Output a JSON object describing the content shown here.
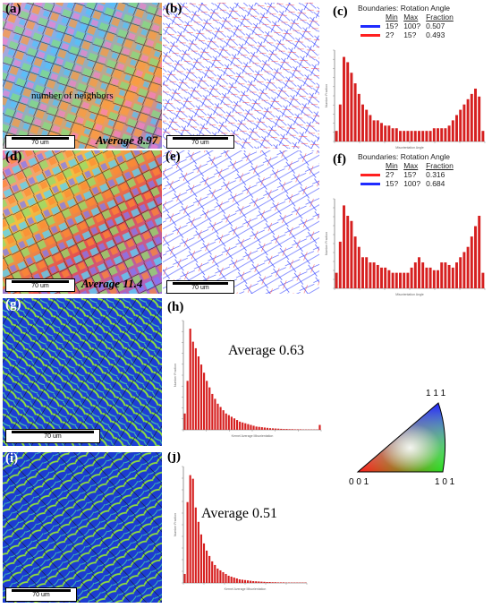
{
  "panels": {
    "a": {
      "label": "(a)",
      "scale": "70 um",
      "average": "Average 8.97",
      "annotation": "number of neighbors"
    },
    "b": {
      "label": "(b)",
      "scale": "70 um"
    },
    "c": {
      "label": "(c)"
    },
    "d": {
      "label": "(d)",
      "scale": "70 um",
      "average": "Average 11.4"
    },
    "e": {
      "label": "(e)",
      "scale": "70 um"
    },
    "f": {
      "label": "(f)"
    },
    "g": {
      "label": "(g)",
      "scale": "70 um"
    },
    "h": {
      "label": "(h)",
      "average": "Average 0.63"
    },
    "i": {
      "label": "(i)",
      "scale": "70 um"
    },
    "j": {
      "label": "(j)",
      "average": "Average 0.51"
    }
  },
  "legend_c": {
    "title": "Boundaries: Rotation Angle",
    "headers": [
      "Min",
      "Max",
      "Fraction"
    ],
    "rows": [
      {
        "color": "#1f2bff",
        "min": "15?",
        "max": "100?",
        "fraction": "0.507"
      },
      {
        "color": "#ff2020",
        "min": "2?",
        "max": "15?",
        "fraction": "0.493"
      }
    ]
  },
  "legend_f": {
    "title": "Boundaries: Rotation Angle",
    "headers": [
      "Min",
      "Max",
      "Fraction"
    ],
    "rows": [
      {
        "color": "#ff2020",
        "min": "2?",
        "max": "15?",
        "fraction": "0.316"
      },
      {
        "color": "#1f2bff",
        "min": "15?",
        "max": "100?",
        "fraction": "0.684"
      }
    ]
  },
  "ipf": {
    "top": "1 1 1",
    "left": "0 0 1",
    "right": "1 0 1"
  },
  "chart_data": [
    {
      "type": "bar",
      "panel": "c",
      "xlabel": "Misorientation Angle",
      "ylabel": "Number Fraction",
      "values": [
        0.02,
        0.07,
        0.16,
        0.15,
        0.13,
        0.11,
        0.09,
        0.07,
        0.06,
        0.05,
        0.04,
        0.04,
        0.035,
        0.03,
        0.03,
        0.025,
        0.025,
        0.02,
        0.02,
        0.02,
        0.02,
        0.02,
        0.02,
        0.02,
        0.02,
        0.02,
        0.025,
        0.025,
        0.025,
        0.025,
        0.03,
        0.04,
        0.05,
        0.06,
        0.07,
        0.08,
        0.09,
        0.1,
        0.085,
        0.02
      ]
    },
    {
      "type": "bar",
      "panel": "f",
      "xlabel": "Misorientation Angle",
      "ylabel": "Number Fraction",
      "values": [
        0.03,
        0.09,
        0.16,
        0.14,
        0.13,
        0.1,
        0.08,
        0.06,
        0.06,
        0.05,
        0.05,
        0.045,
        0.04,
        0.04,
        0.035,
        0.03,
        0.03,
        0.03,
        0.03,
        0.03,
        0.04,
        0.05,
        0.06,
        0.05,
        0.04,
        0.04,
        0.035,
        0.035,
        0.05,
        0.05,
        0.045,
        0.04,
        0.05,
        0.06,
        0.07,
        0.08,
        0.1,
        0.12,
        0.14,
        0.03
      ]
    },
    {
      "type": "bar",
      "panel": "h",
      "xlabel": "Kernel Average Misorientation",
      "ylabel": "Number Fraction",
      "values": [
        0.01,
        0.03,
        0.062,
        0.054,
        0.05,
        0.045,
        0.04,
        0.035,
        0.03,
        0.026,
        0.022,
        0.019,
        0.016,
        0.014,
        0.012,
        0.01,
        0.009,
        0.008,
        0.007,
        0.006,
        0.005,
        0.0045,
        0.004,
        0.0035,
        0.003,
        0.0025,
        0.002,
        0.0018,
        0.0016,
        0.0014,
        0.0012,
        0.001,
        0.0009,
        0.0008,
        0.0007,
        0.0006,
        0.0005,
        0.0005,
        0.0004,
        0.0004,
        0.0003,
        0.0003,
        0.0003,
        0.0002,
        0.0002,
        0.0002,
        0.0002,
        0.0002,
        0.0002,
        0.003
      ]
    },
    {
      "type": "bar",
      "panel": "j",
      "xlabel": "Kernel Average Misorientation",
      "ylabel": "Number Fraction",
      "values": [
        0.005,
        0.045,
        0.06,
        0.058,
        0.042,
        0.034,
        0.027,
        0.022,
        0.018,
        0.015,
        0.012,
        0.01,
        0.008,
        0.007,
        0.006,
        0.005,
        0.004,
        0.0035,
        0.003,
        0.0025,
        0.002,
        0.0018,
        0.0016,
        0.0014,
        0.0012,
        0.001,
        0.0009,
        0.0008,
        0.0007,
        0.0006,
        0.0005,
        0.0005,
        0.0004,
        0.0004,
        0.0003,
        0.0003,
        0.0003,
        0.0002,
        0.0002,
        0.0002,
        0.0002,
        0.0002,
        0.0002,
        0.0002,
        0.0002
      ]
    }
  ]
}
